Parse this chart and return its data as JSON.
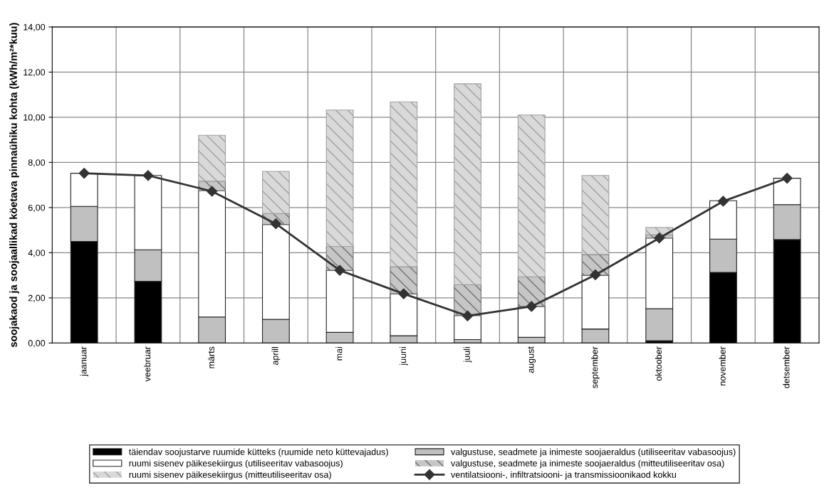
{
  "chart_data": {
    "type": "bar",
    "stacked": true,
    "ylabel": "soojakaod ja soojaallikad köetava pinnaühiku kohta (kWh/m²*kuu)",
    "categories": [
      "jaanuar",
      "veebruar",
      "märts",
      "aprill",
      "mai",
      "juuni",
      "juuli",
      "august",
      "september",
      "oktoober",
      "november",
      "detsember"
    ],
    "series": [
      {
        "name": "täiendav soojustarve ruumide kütteks (ruumide neto küttevajadus)",
        "color": "#000000",
        "values": [
          4.5,
          2.73,
          0,
          0,
          0,
          0,
          0,
          0,
          0,
          0.1,
          3.13,
          4.58
        ]
      },
      {
        "name": "valgustuse, seadmete ja inimeste soojaeraldus (utiliseeritav vabasoojus)",
        "color": "#c0c0c0",
        "values": [
          1.55,
          1.4,
          1.15,
          1.05,
          0.47,
          0.32,
          0.15,
          0.25,
          0.62,
          1.42,
          1.47,
          1.55
        ]
      },
      {
        "name": "ruumi sisenev päikesekiirgus (utiliseeritav vabasoojus)",
        "color": "#ffffff",
        "values": [
          1.47,
          3.29,
          5.6,
          4.2,
          2.75,
          1.86,
          1.07,
          1.37,
          2.38,
          3.13,
          1.7,
          1.17
        ]
      },
      {
        "name": "valgustuse, seadmete ja inimeste soojaeraldus (mitteutiliseeritav osa)",
        "color": "#707070",
        "values": [
          0,
          0,
          0.42,
          0.48,
          1.06,
          1.2,
          1.36,
          1.31,
          0.92,
          0.15,
          0,
          0
        ]
      },
      {
        "name": "ruumi sisenev päikesekiirgus (mitteutiliseeritav osa)",
        "color": "#a0a0a0",
        "values": [
          0,
          0,
          2.03,
          1.87,
          6.04,
          7.3,
          8.9,
          7.17,
          3.5,
          0.32,
          0,
          0
        ]
      },
      {
        "name": "ventilatsiooni-, infiltratsiooni- ja transmissioonikaod kokku",
        "type": "line",
        "color": "#333333",
        "marker": "diamond",
        "values": [
          7.52,
          7.42,
          6.72,
          5.28,
          3.22,
          2.18,
          1.2,
          1.62,
          3.02,
          4.65,
          6.28,
          7.3
        ]
      }
    ],
    "ylim": [
      0,
      14
    ],
    "yticks": [
      {
        "value": 0,
        "label": "0,00"
      },
      {
        "value": 2,
        "label": "2,00"
      },
      {
        "value": 4,
        "label": "4,00"
      },
      {
        "value": 6,
        "label": "6,00"
      },
      {
        "value": 8,
        "label": "8,00"
      },
      {
        "value": 10,
        "label": "10,00"
      },
      {
        "value": 12,
        "label": "12,00"
      },
      {
        "value": 14,
        "label": "14,00"
      }
    ],
    "grid": true,
    "legend": "bottom"
  }
}
